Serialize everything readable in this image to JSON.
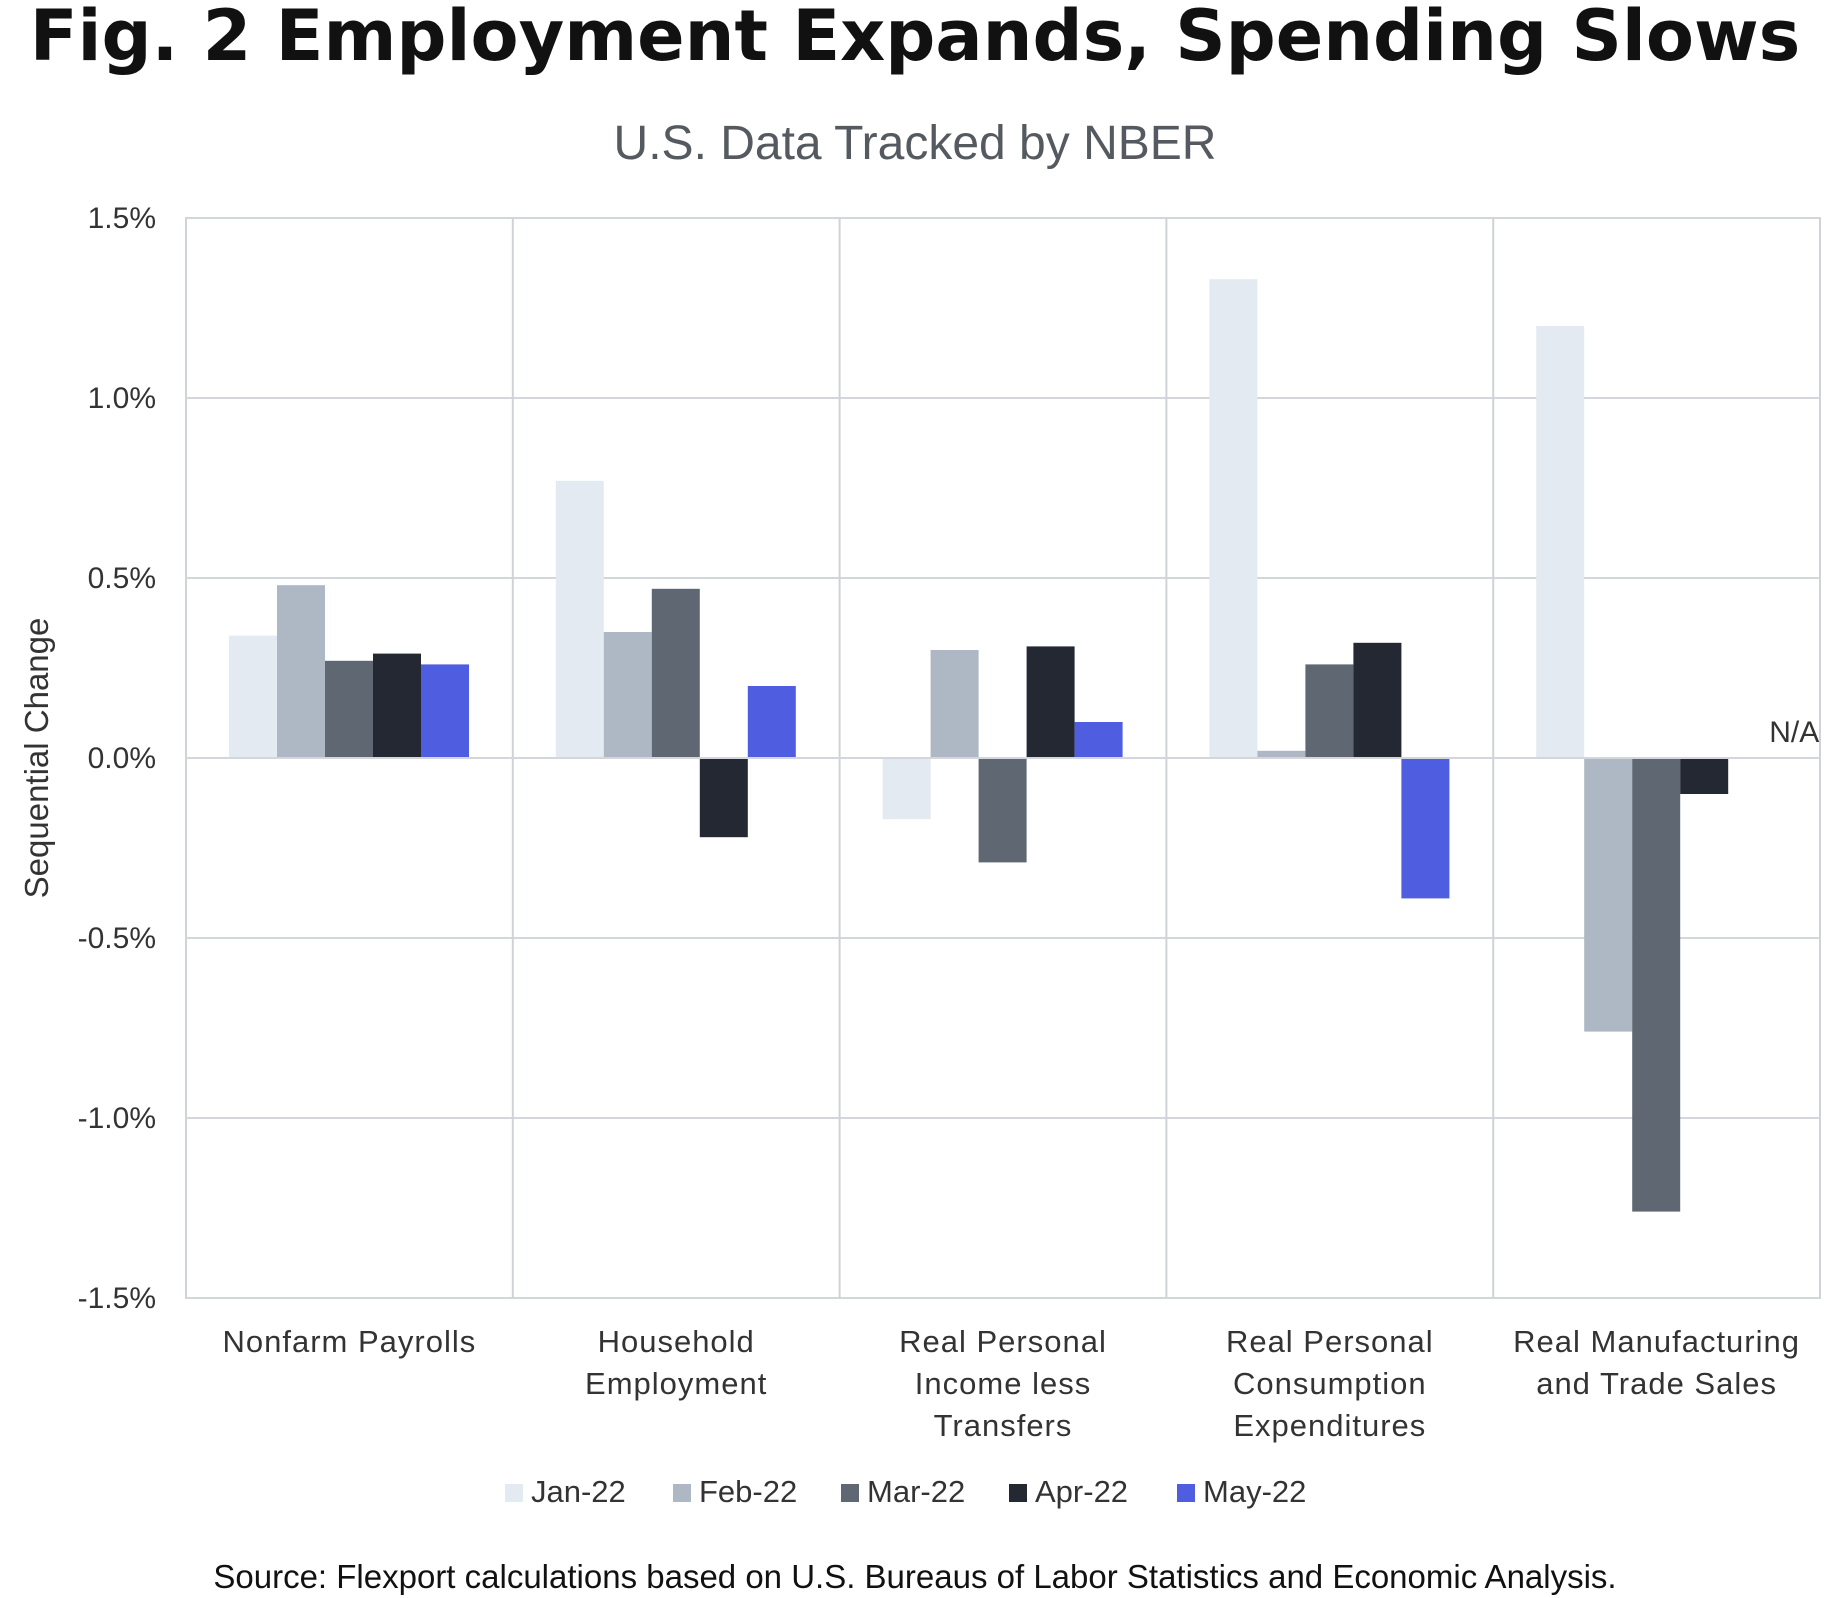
{
  "chart_data": {
    "type": "bar",
    "title": "Fig. 2 Employment Expands, Spending Slows",
    "subtitle": "U.S. Data Tracked by NBER",
    "ylabel": "Sequential Change",
    "xlabel": "",
    "ylim": [
      -1.5,
      1.5
    ],
    "yticks": [
      1.5,
      1.0,
      0.5,
      0.0,
      -0.5,
      -1.0,
      -1.5
    ],
    "ytick_labels": [
      "1.5%",
      "1.0%",
      "0.5%",
      "0.0%",
      "-0.5%",
      "-1.0%",
      "-1.5%"
    ],
    "grid": true,
    "legend_position": "bottom",
    "categories": [
      [
        "Nonfarm Payrolls"
      ],
      [
        "Household",
        "Employment"
      ],
      [
        "Real Personal",
        "Income less",
        "Transfers"
      ],
      [
        "Real Personal",
        "Consumption",
        "Expenditures"
      ],
      [
        "Real Manufacturing",
        "and Trade Sales"
      ]
    ],
    "series": [
      {
        "name": "Jan-22",
        "color": "#e3eaf1",
        "values": [
          0.34,
          0.77,
          -0.17,
          1.33,
          1.2
        ]
      },
      {
        "name": "Feb-22",
        "color": "#adb8c4",
        "values": [
          0.48,
          0.35,
          0.3,
          0.02,
          -0.76
        ]
      },
      {
        "name": "Mar-22",
        "color": "#5f6872",
        "values": [
          0.27,
          0.47,
          -0.29,
          0.26,
          -1.26
        ]
      },
      {
        "name": "Apr-22",
        "color": "#232833",
        "values": [
          0.29,
          -0.22,
          0.31,
          0.32,
          -0.1
        ]
      },
      {
        "name": "May-22",
        "color": "#4f5de0",
        "values": [
          0.26,
          0.2,
          0.1,
          -0.39,
          null
        ]
      }
    ],
    "annotations": [
      {
        "text": "N/A",
        "category_index": 4,
        "series": "May-22"
      }
    ],
    "source": "Source: Flexport calculations based on U.S. Bureaus of Labor Statistics and Economic Analysis."
  }
}
